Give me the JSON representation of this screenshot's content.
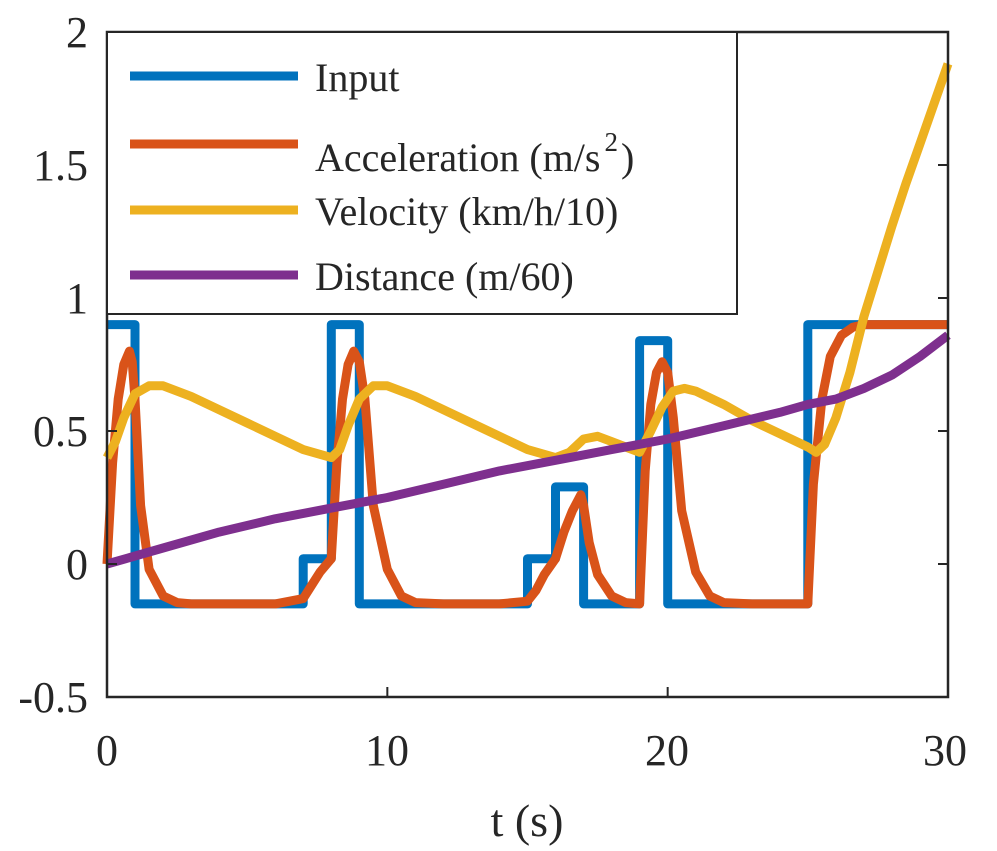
{
  "chart_data": {
    "type": "line",
    "title": "",
    "xlabel": "t (s)",
    "ylabel": "",
    "xlim": [
      0,
      30
    ],
    "ylim": [
      -0.5,
      2
    ],
    "xticks": [
      0,
      10,
      20,
      30
    ],
    "xtick_labels": [
      "0",
      "10",
      "20",
      "30"
    ],
    "yticks": [
      -0.5,
      0,
      0.5,
      1,
      1.5,
      2
    ],
    "ytick_labels": [
      "-0.5",
      "0",
      "0.5",
      "1",
      "1.5",
      "2"
    ],
    "grid": false,
    "legend_position": "top-left",
    "legend_labels": [
      "Input",
      "Acceleration (m/s",
      "Velocity (km/h/10)",
      "Distance (m/60)"
    ],
    "legend_superscript": "2",
    "legend_suffix": ")",
    "series": [
      {
        "name": "Input",
        "color": "#0072BD",
        "step": true,
        "x": [
          0,
          1,
          1,
          7,
          7,
          8,
          8,
          9,
          9,
          15,
          15,
          16,
          16,
          17,
          17,
          19,
          19,
          20,
          20,
          25,
          25,
          30
        ],
        "y": [
          0.9,
          0.9,
          -0.15,
          -0.15,
          0.02,
          0.02,
          0.9,
          0.9,
          -0.15,
          -0.15,
          0.02,
          0.02,
          0.29,
          0.29,
          -0.15,
          -0.15,
          0.84,
          0.84,
          -0.15,
          -0.15,
          0.9,
          0.9
        ]
      },
      {
        "name": "Acceleration (m/s2)",
        "color": "#D95319",
        "x": [
          0,
          0.2,
          0.4,
          0.6,
          0.8,
          0.9,
          1.0,
          1.2,
          1.5,
          2.0,
          2.5,
          3,
          4,
          5,
          6,
          7,
          7.3,
          7.6,
          8,
          8.2,
          8.4,
          8.6,
          8.8,
          9.0,
          9.2,
          9.5,
          10,
          10.5,
          11,
          12,
          13,
          14,
          15,
          15.3,
          15.6,
          16,
          16.3,
          16.6,
          16.9,
          17.0,
          17.2,
          17.5,
          18,
          18.5,
          19,
          19.2,
          19.4,
          19.6,
          19.8,
          20.0,
          20.2,
          20.5,
          21,
          21.5,
          22,
          23,
          24,
          25,
          25.2,
          25.5,
          25.8,
          26.2,
          26.6,
          27,
          28,
          29,
          30
        ],
        "y": [
          0.0,
          0.38,
          0.62,
          0.75,
          0.8,
          0.76,
          0.62,
          0.22,
          -0.02,
          -0.12,
          -0.145,
          -0.15,
          -0.15,
          -0.15,
          -0.15,
          -0.13,
          -0.08,
          -0.03,
          0.02,
          0.38,
          0.62,
          0.75,
          0.8,
          0.76,
          0.62,
          0.22,
          -0.02,
          -0.12,
          -0.145,
          -0.15,
          -0.15,
          -0.15,
          -0.14,
          -0.1,
          -0.04,
          0.02,
          0.12,
          0.2,
          0.26,
          0.22,
          0.08,
          -0.04,
          -0.12,
          -0.145,
          -0.15,
          0.35,
          0.6,
          0.72,
          0.76,
          0.72,
          0.55,
          0.2,
          -0.03,
          -0.12,
          -0.145,
          -0.15,
          -0.15,
          -0.15,
          0.3,
          0.62,
          0.78,
          0.86,
          0.89,
          0.9,
          0.9,
          0.9,
          0.9
        ]
      },
      {
        "name": "Velocity (km/h/10)",
        "color": "#EDB120",
        "x": [
          0,
          0.3,
          0.6,
          1.0,
          1.5,
          2.0,
          3,
          4,
          5,
          6,
          7,
          8,
          8.3,
          8.6,
          9.0,
          9.5,
          10,
          11,
          12,
          13,
          14,
          15,
          16,
          16.5,
          17,
          17.5,
          18,
          18.5,
          19,
          19.4,
          19.8,
          20.2,
          20.6,
          21,
          22,
          23,
          24,
          25,
          25.3,
          25.6,
          26,
          26.5,
          27,
          27.5,
          28,
          28.5,
          29,
          29.5,
          30
        ],
        "y": [
          0.4,
          0.46,
          0.55,
          0.64,
          0.67,
          0.67,
          0.63,
          0.58,
          0.53,
          0.48,
          0.43,
          0.4,
          0.43,
          0.52,
          0.62,
          0.67,
          0.67,
          0.63,
          0.58,
          0.53,
          0.48,
          0.43,
          0.4,
          0.42,
          0.47,
          0.48,
          0.46,
          0.44,
          0.42,
          0.5,
          0.59,
          0.65,
          0.66,
          0.65,
          0.6,
          0.54,
          0.49,
          0.44,
          0.42,
          0.45,
          0.55,
          0.72,
          0.93,
          1.1,
          1.27,
          1.43,
          1.58,
          1.73,
          1.88
        ]
      },
      {
        "name": "Distance (m/60)",
        "color": "#7E2F8E",
        "x": [
          0,
          2,
          4,
          6,
          8,
          10,
          12,
          14,
          16,
          18,
          20,
          22,
          24,
          25,
          26,
          27,
          28,
          29,
          30
        ],
        "y": [
          0.0,
          0.06,
          0.12,
          0.17,
          0.21,
          0.25,
          0.3,
          0.35,
          0.39,
          0.43,
          0.47,
          0.52,
          0.57,
          0.6,
          0.62,
          0.66,
          0.71,
          0.78,
          0.86
        ]
      }
    ]
  }
}
